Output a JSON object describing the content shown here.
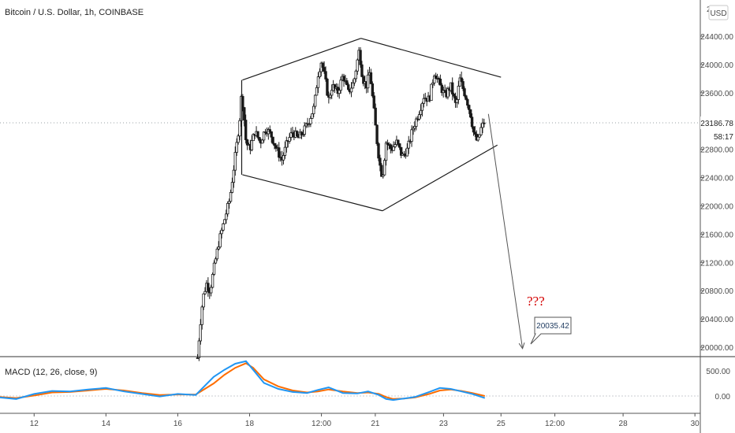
{
  "chart_data": [
    {
      "type": "candlestick",
      "title": "Bitcoin / U.S. Dollar, 1h, COINBASE",
      "currency_button": "USD",
      "ylim": [
        19800,
        24800
      ],
      "y_ticks": [
        20000,
        20400,
        20800,
        21200,
        21600,
        22000,
        22400,
        22800,
        23600,
        24000,
        24400
      ],
      "y_tick_labels": [
        "20000.00",
        "20400.00",
        "20800.00",
        "21200.00",
        "21600.00",
        "22000.00",
        "22400.00",
        "22800.00",
        "23600.00",
        "24000.00",
        "24400.00"
      ],
      "y_tick_top_partial": "2",
      "x_unit": "day",
      "xlim": [
        11.05,
        30.55
      ],
      "x_ticks": [
        {
          "x": 12,
          "label": "12"
        },
        {
          "x": 14,
          "label": "14"
        },
        {
          "x": 16,
          "label": "16"
        },
        {
          "x": 18,
          "label": "18"
        },
        {
          "x": 20,
          "label": "12:00"
        },
        {
          "x": 21.5,
          "label": "21"
        },
        {
          "x": 23.4,
          "label": "23"
        },
        {
          "x": 25,
          "label": "25"
        },
        {
          "x": 26.5,
          "label": "12:00"
        },
        {
          "x": 28.4,
          "label": "28"
        },
        {
          "x": 30.4,
          "label": "30"
        }
      ],
      "last_price": "23186.78",
      "countdown": "58:17",
      "price_path": [
        [
          16.55,
          19850
        ],
        [
          16.62,
          20300
        ],
        [
          16.7,
          20700
        ],
        [
          16.8,
          20900
        ],
        [
          16.9,
          20800
        ],
        [
          17.0,
          21100
        ],
        [
          17.15,
          21500
        ],
        [
          17.3,
          21800
        ],
        [
          17.45,
          22100
        ],
        [
          17.55,
          22500
        ],
        [
          17.65,
          22900
        ],
        [
          17.72,
          23200
        ],
        [
          17.78,
          23600
        ],
        [
          17.84,
          23300
        ],
        [
          17.9,
          22900
        ],
        [
          18.0,
          22800
        ],
        [
          18.15,
          23050
        ],
        [
          18.3,
          22900
        ],
        [
          18.45,
          23100
        ],
        [
          18.6,
          23000
        ],
        [
          18.75,
          22800
        ],
        [
          18.9,
          22650
        ],
        [
          19.05,
          22900
        ],
        [
          19.2,
          23050
        ],
        [
          19.35,
          22950
        ],
        [
          19.5,
          23050
        ],
        [
          19.65,
          23200
        ],
        [
          19.8,
          23400
        ],
        [
          19.9,
          23850
        ],
        [
          20.0,
          24050
        ],
        [
          20.1,
          23800
        ],
        [
          20.2,
          23500
        ],
        [
          20.3,
          23700
        ],
        [
          20.45,
          23600
        ],
        [
          20.6,
          23850
        ],
        [
          20.75,
          23600
        ],
        [
          20.9,
          23750
        ],
        [
          21.05,
          24200
        ],
        [
          21.15,
          23800
        ],
        [
          21.25,
          23700
        ],
        [
          21.35,
          23900
        ],
        [
          21.45,
          23400
        ],
        [
          21.55,
          22900
        ],
        [
          21.62,
          22600
        ],
        [
          21.7,
          22400
        ],
        [
          21.8,
          22900
        ],
        [
          21.95,
          22800
        ],
        [
          22.1,
          22900
        ],
        [
          22.25,
          22700
        ],
        [
          22.4,
          22800
        ],
        [
          22.55,
          23100
        ],
        [
          22.7,
          23300
        ],
        [
          22.85,
          23550
        ],
        [
          23.0,
          23500
        ],
        [
          23.15,
          23900
        ],
        [
          23.3,
          23700
        ],
        [
          23.45,
          23550
        ],
        [
          23.6,
          23700
        ],
        [
          23.75,
          23400
        ],
        [
          23.85,
          23800
        ],
        [
          23.95,
          23650
        ],
        [
          24.05,
          23500
        ],
        [
          24.15,
          23300
        ],
        [
          24.25,
          23000
        ],
        [
          24.35,
          22900
        ],
        [
          24.45,
          23100
        ],
        [
          24.55,
          23200
        ]
      ],
      "pattern_lines": [
        {
          "name": "upper-left",
          "from": [
            17.8,
            23780
          ],
          "to": [
            21.1,
            24370
          ]
        },
        {
          "name": "upper-right",
          "from": [
            21.1,
            24370
          ],
          "to": [
            25.0,
            23820
          ]
        },
        {
          "name": "lower-left",
          "from": [
            17.8,
            22440
          ],
          "to": [
            21.7,
            21930
          ]
        },
        {
          "name": "lower-right",
          "from": [
            21.7,
            21930
          ],
          "to": [
            24.9,
            22860
          ]
        },
        {
          "name": "left-edge",
          "from": [
            17.78,
            23780
          ],
          "to": [
            17.78,
            22440
          ]
        }
      ],
      "projection": {
        "from": [
          24.65,
          23300
        ],
        "to": [
          25.6,
          19980
        ]
      },
      "annotation_text": "???",
      "target_callout": "20035.42"
    },
    {
      "type": "line",
      "title": "MACD (12, 26, close, 9)",
      "y_ticks": [
        0,
        500
      ],
      "y_tick_labels": [
        "0.00",
        "500.00"
      ],
      "ylim": [
        -150,
        700
      ],
      "colors": {
        "macd": "#2196f3",
        "signal": "#ff6d00"
      },
      "x": [
        11.05,
        11.5,
        12.0,
        12.5,
        13.0,
        13.5,
        14.0,
        14.5,
        15.0,
        15.5,
        16.0,
        16.5,
        17.0,
        17.3,
        17.6,
        17.9,
        18.1,
        18.4,
        18.8,
        19.2,
        19.6,
        19.9,
        20.2,
        20.6,
        21.0,
        21.3,
        21.6,
        21.8,
        22.0,
        22.3,
        22.6,
        23.0,
        23.3,
        23.6,
        23.9,
        24.2,
        24.55
      ],
      "series": [
        {
          "name": "MACD",
          "values": [
            -30,
            -60,
            40,
            100,
            90,
            130,
            160,
            90,
            40,
            -10,
            40,
            20,
            380,
            520,
            640,
            690,
            520,
            260,
            140,
            80,
            60,
            120,
            170,
            60,
            50,
            90,
            20,
            -60,
            -80,
            -50,
            -20,
            80,
            160,
            140,
            90,
            40,
            -40
          ]
        },
        {
          "name": "Signal",
          "values": [
            -20,
            -40,
            10,
            70,
            80,
            110,
            140,
            110,
            60,
            20,
            30,
            30,
            250,
            420,
            560,
            650,
            560,
            330,
            190,
            110,
            70,
            90,
            130,
            90,
            60,
            70,
            40,
            -20,
            -60,
            -50,
            -30,
            40,
            110,
            130,
            100,
            60,
            0
          ]
        }
      ]
    }
  ]
}
